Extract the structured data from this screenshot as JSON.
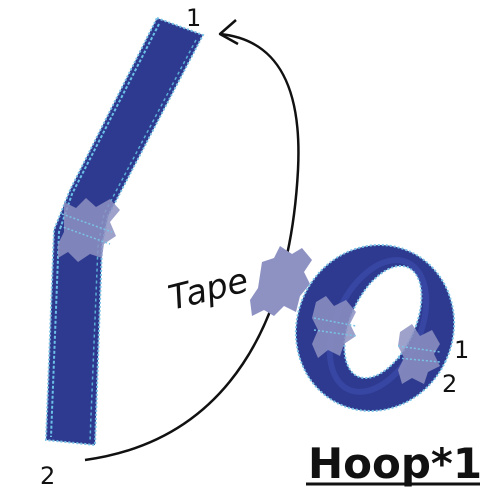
{
  "labels": {
    "strip_top_number": "1",
    "strip_bottom_number": "2",
    "tape": "Tape",
    "hoop_number_one": "1",
    "hoop_number_two": "2",
    "hoop_title": "Hoop*1"
  },
  "colors": {
    "band_fill": "#2e3a8f",
    "band_edge": "#79c3e6",
    "tape_fill": "#8d92c2",
    "ink": "#111111"
  }
}
